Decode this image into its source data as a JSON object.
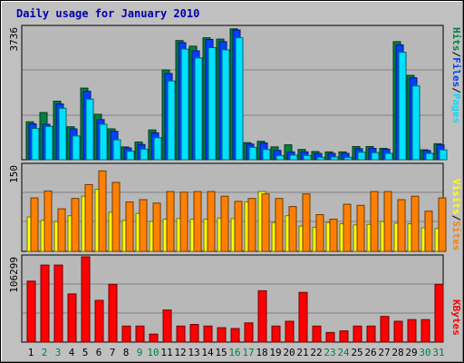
{
  "colors": {
    "background": "#C0C0C0",
    "plot_bg": "#B8B8B8",
    "title": "#0000B0",
    "hits": "#008040",
    "files": "#0040FF",
    "pages": "#00E0FF",
    "visits": "#FFFF00",
    "sites": "#FF8000",
    "kbytes": "#FF0000",
    "weekday_label": "#000000",
    "weekend_label": "#008040"
  },
  "chart_data": {
    "title": "Daily usage for January 2010",
    "type": "bar",
    "categories": [
      "1",
      "2",
      "3",
      "4",
      "5",
      "6",
      "7",
      "8",
      "9",
      "10",
      "11",
      "12",
      "13",
      "14",
      "15",
      "16",
      "17",
      "18",
      "19",
      "20",
      "21",
      "22",
      "23",
      "24",
      "25",
      "26",
      "27",
      "28",
      "29",
      "30",
      "31"
    ],
    "weekend_days": [
      "2",
      "3",
      "9",
      "10",
      "16",
      "17",
      "23",
      "24",
      "30",
      "31"
    ],
    "panels": [
      {
        "id": "top",
        "y_max_label": "3736",
        "y_max": 3736,
        "right_label": [
          {
            "text": "Hits",
            "color": "#008040"
          },
          {
            "text": "/",
            "color": "#000000"
          },
          {
            "text": "Files",
            "color": "#0040FF"
          },
          {
            "text": "/",
            "color": "#000000"
          },
          {
            "text": "Pages",
            "color": "#00E0FF"
          }
        ],
        "series": [
          {
            "name": "Hits",
            "color": "#008040",
            "values": [
              1070,
              1330,
              1650,
              930,
              2020,
              1280,
              870,
              360,
              500,
              840,
              2530,
              3360,
              3200,
              3440,
              3400,
              3690,
              480,
              520,
              360,
              420,
              290,
              230,
              220,
              220,
              370,
              370,
              320,
              3330,
              2380,
              280,
              450
            ]
          },
          {
            "name": "Files",
            "color": "#0040FF",
            "values": [
              1010,
              1000,
              1570,
              870,
              1930,
              1130,
              800,
              330,
              430,
              760,
              2430,
              3300,
              3070,
              3390,
              3330,
              3660,
              440,
              470,
              260,
              220,
              220,
              180,
              180,
              180,
              310,
              320,
              300,
              3240,
              2310,
              260,
              420
            ]
          },
          {
            "name": "Pages",
            "color": "#00E0FF",
            "values": [
              880,
              940,
              1450,
              670,
              1710,
              1000,
              560,
              240,
              300,
              620,
              2220,
              3120,
              2870,
              3160,
              3100,
              3440,
              350,
              290,
              120,
              130,
              120,
              70,
              80,
              70,
              210,
              200,
              180,
              3030,
              2080,
              180,
              280
            ]
          }
        ]
      },
      {
        "id": "middle",
        "y_max_label": "150",
        "y_max": 150,
        "right_label": [
          {
            "text": "Visits",
            "color": "#FFFF00"
          },
          {
            "text": "/",
            "color": "#000000"
          },
          {
            "text": "Sites",
            "color": "#FF8000"
          }
        ],
        "series": [
          {
            "name": "Visits",
            "color": "#FFFF00",
            "values": [
              60,
              54,
              52,
              62,
              96,
              108,
              68,
              54,
              66,
              52,
              56,
              57,
              56,
              56,
              58,
              57,
              86,
              104,
              50,
              62,
              44,
              42,
              50,
              48,
              46,
              47,
              52,
              49,
              48,
              41,
              40
            ]
          },
          {
            "name": "Sites",
            "color": "#FF8000",
            "values": [
              93,
              105,
              74,
              92,
              116,
              140,
              120,
              86,
              90,
              84,
              104,
              103,
              104,
              104,
              96,
              87,
              92,
              100,
              92,
              78,
              100,
              64,
              56,
              82,
              80,
              104,
              104,
              90,
              96,
              70,
              93
            ]
          }
        ]
      },
      {
        "id": "bottom",
        "y_max_label": "106299",
        "y_max": 106299,
        "right_label": [
          {
            "text": "KBytes",
            "color": "#FF0000"
          }
        ],
        "series": [
          {
            "name": "KBytes",
            "color": "#FF0000",
            "values": [
              76000,
              96000,
              96000,
              60000,
              106299,
              52000,
              72000,
              20000,
              20000,
              10000,
              40000,
              20000,
              22000,
              20000,
              18000,
              17000,
              24000,
              64000,
              20000,
              26000,
              62000,
              20000,
              12000,
              14000,
              20000,
              20000,
              32000,
              26000,
              28000,
              28000,
              72000
            ]
          }
        ]
      }
    ]
  }
}
